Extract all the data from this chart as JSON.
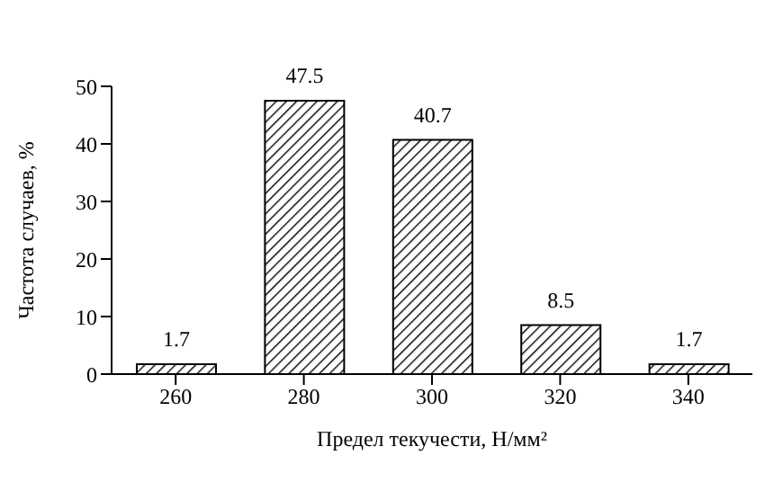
{
  "chart_data": {
    "type": "bar",
    "xlabel": "Предел текучести, Н/мм²",
    "ylabel": "Частота случаев, %",
    "categories": [
      "260",
      "280",
      "300",
      "320",
      "340"
    ],
    "values": [
      1.7,
      47.5,
      40.7,
      8.5,
      1.7
    ],
    "color": "#000000",
    "ylim": [
      0,
      50
    ],
    "yticks": [
      0,
      10,
      20,
      30,
      40,
      50
    ],
    "data_labels": true,
    "grid": false
  }
}
